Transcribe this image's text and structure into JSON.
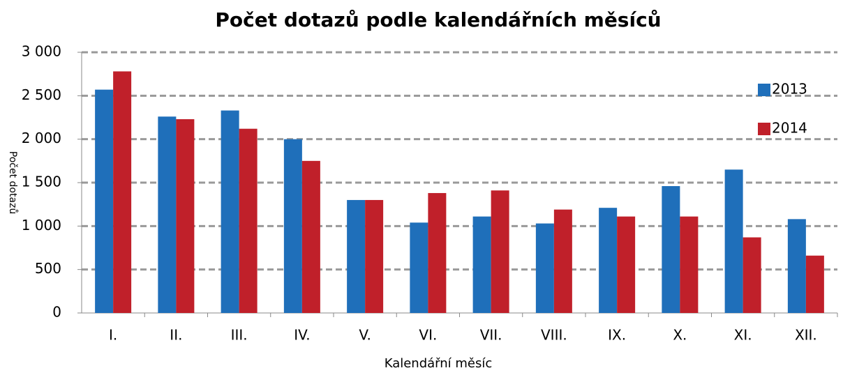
{
  "chart_data": {
    "type": "bar",
    "title": "Počet dotazů podle kalendářních měsíců",
    "x_label": "Kalendářní měsíc",
    "y_label": "Počet dotazů",
    "categories": [
      "I.",
      "II.",
      "III.",
      "IV.",
      "V.",
      "VI.",
      "VII.",
      "VIII.",
      "IX.",
      "X.",
      "XI.",
      "XII."
    ],
    "series": [
      {
        "name": "2013",
        "color": "#1f6fba",
        "values": [
          2570,
          2260,
          2330,
          2000,
          1300,
          1040,
          1110,
          1030,
          1210,
          1460,
          1650,
          1080
        ]
      },
      {
        "name": "2014",
        "color": "#c0202a",
        "values": [
          2780,
          2230,
          2120,
          1750,
          1300,
          1380,
          1410,
          1190,
          1110,
          1110,
          870,
          660
        ]
      }
    ],
    "ylim": [
      0,
      3000
    ],
    "yticks": [
      0,
      500,
      {
        "value": 1000,
        "label": "1 000"
      },
      {
        "value": 1500,
        "label": "1 500"
      },
      {
        "value": 2000,
        "label": "2 000"
      },
      {
        "value": 2500,
        "label": "2 500"
      },
      {
        "value": 3000,
        "label": "3 000"
      }
    ],
    "grid": true,
    "legend": "top-right"
  }
}
